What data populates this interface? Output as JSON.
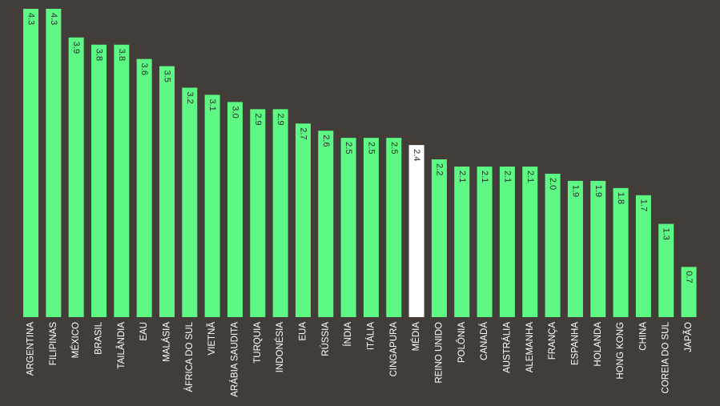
{
  "chart_data": {
    "type": "bar",
    "categories": [
      "ARGENTINA",
      "FILIPINAS",
      "MÉXICO",
      "BRASIL",
      "TAILÂNDIA",
      "EAU",
      "MALÁSIA",
      "ÁFRICA DO SUL",
      "VIETNÃ",
      "ARÁBIA SAUDITA",
      "TURQUIA",
      "INDONÉSIA",
      "EUA",
      "RÚSSIA",
      "ÍNDIA",
      "ITÁLIA",
      "CINGAPURA",
      "MÉDIA",
      "REINO UNIDO",
      "POLÔNIA",
      "CANADÁ",
      "AUSTRÁLIA",
      "ALEMANHA",
      "FRANÇA",
      "ESPANHA",
      "HOLANDA",
      "HONG KONG",
      "CHINA",
      "COREIA DO SUL",
      "JAPÃO"
    ],
    "values": [
      4.3,
      4.3,
      3.9,
      3.8,
      3.8,
      3.6,
      3.5,
      3.2,
      3.1,
      3.0,
      2.9,
      2.9,
      2.7,
      2.6,
      2.5,
      2.5,
      2.5,
      2.4,
      2.2,
      2.1,
      2.1,
      2.1,
      2.1,
      2.0,
      1.9,
      1.9,
      1.8,
      1.7,
      1.3,
      0.7
    ],
    "value_labels": [
      "4.3",
      "4.3",
      "3.9",
      "3.8",
      "3.8",
      "3.6",
      "3.5",
      "3.2",
      "3.1",
      "3.0",
      "2.9",
      "2.9",
      "2.7",
      "2.6",
      "2.5",
      "2.5",
      "2.5",
      "2.4",
      "2.2",
      "2.1",
      "2.1",
      "2.1",
      "2.1",
      "2.0",
      "1.9",
      "1.9",
      "1.8",
      "1.7",
      "1.3",
      "0.7"
    ],
    "highlight_category": "MÉDIA",
    "title": "",
    "xlabel": "",
    "ylabel": "",
    "ylim": [
      0,
      4.3
    ],
    "grid": false,
    "legend": "none",
    "colors": {
      "background": "#433d3a",
      "bar": "#5ef884",
      "highlight_bar": "#ffffff",
      "value_label": "#2b2b2b",
      "category_label": "#ffffff"
    }
  }
}
